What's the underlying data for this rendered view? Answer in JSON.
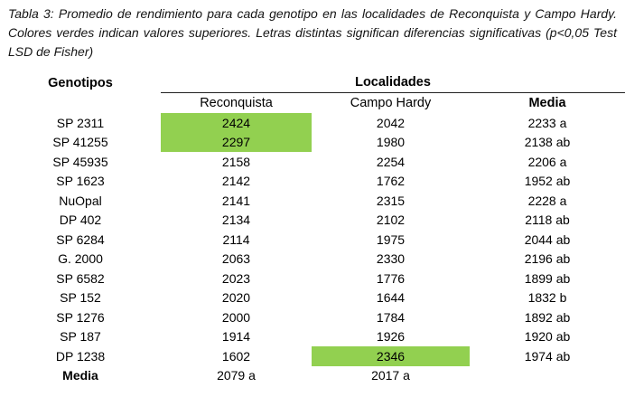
{
  "caption": {
    "text": "Tabla 3: Promedio de rendimiento para cada genotipo en las localidades de Reconquista y Campo Hardy. Colores verdes indican valores superiores. Letras distintas significan diferencias significativas (p<0,05 Test LSD de Fisher)"
  },
  "table": {
    "group_header": "Localidades",
    "headers": {
      "genotipos": "Genotipos",
      "reconquista": "Reconquista",
      "campo_hardy": "Campo Hardy",
      "media": "Media"
    },
    "rows": [
      {
        "genotipo": "SP 2311",
        "reconquista": "2424",
        "campo_hardy": "2042",
        "media": "2233 a",
        "highlight": "reconquista"
      },
      {
        "genotipo": "SP 41255",
        "reconquista": "2297",
        "campo_hardy": "1980",
        "media": "2138 ab",
        "highlight": "reconquista"
      },
      {
        "genotipo": "SP 45935",
        "reconquista": "2158",
        "campo_hardy": "2254",
        "media": "2206 a"
      },
      {
        "genotipo": "SP 1623",
        "reconquista": "2142",
        "campo_hardy": "1762",
        "media": "1952 ab"
      },
      {
        "genotipo": "NuOpal",
        "reconquista": "2141",
        "campo_hardy": "2315",
        "media": "2228 a"
      },
      {
        "genotipo": "DP 402",
        "reconquista": "2134",
        "campo_hardy": "2102",
        "media": "2118 ab"
      },
      {
        "genotipo": "SP 6284",
        "reconquista": "2114",
        "campo_hardy": "1975",
        "media": "2044 ab"
      },
      {
        "genotipo": "G. 2000",
        "reconquista": "2063",
        "campo_hardy": "2330",
        "media": "2196 ab"
      },
      {
        "genotipo": "SP 6582",
        "reconquista": "2023",
        "campo_hardy": "1776",
        "media": "1899 ab"
      },
      {
        "genotipo": "SP 152",
        "reconquista": "2020",
        "campo_hardy": "1644",
        "media": "1832 b"
      },
      {
        "genotipo": "SP 1276",
        "reconquista": "2000",
        "campo_hardy": "1784",
        "media": "1892 ab"
      },
      {
        "genotipo": "SP 187",
        "reconquista": "1914",
        "campo_hardy": "1926",
        "media": "1920 ab"
      },
      {
        "genotipo": "DP 1238",
        "reconquista": "1602",
        "campo_hardy": "2346",
        "media": "1974 ab",
        "highlight": "campo_hardy"
      },
      {
        "genotipo": "Media",
        "reconquista": "2079 a",
        "campo_hardy": "2017 a",
        "media": "",
        "bold": true
      }
    ],
    "colors": {
      "highlight_green": "#92D050"
    }
  }
}
